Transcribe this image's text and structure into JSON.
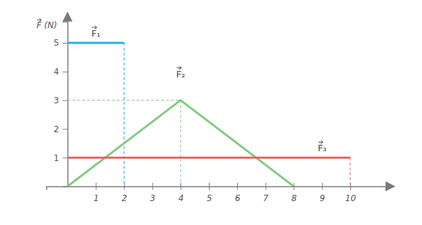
{
  "chart_data": {
    "type": "line",
    "y_label": "F (N)",
    "xlim": [
      -0.75,
      11.25
    ],
    "xticks": [
      1,
      2,
      3,
      4,
      5,
      6,
      7,
      8,
      9,
      10
    ],
    "ylim": [
      0,
      5.75
    ],
    "yticks": [
      1,
      2,
      3,
      4,
      5
    ],
    "series": [
      {
        "name": "F₁",
        "color": "#29abe2",
        "x": [
          0,
          2
        ],
        "values": [
          5,
          5
        ]
      },
      {
        "name": "F₂",
        "color": "#7fcc7f",
        "x": [
          0,
          4,
          8
        ],
        "values": [
          0,
          3,
          0
        ]
      },
      {
        "name": "F₃",
        "color": "#e06464",
        "x": [
          0,
          10
        ],
        "values": [
          1,
          1
        ]
      }
    ]
  }
}
